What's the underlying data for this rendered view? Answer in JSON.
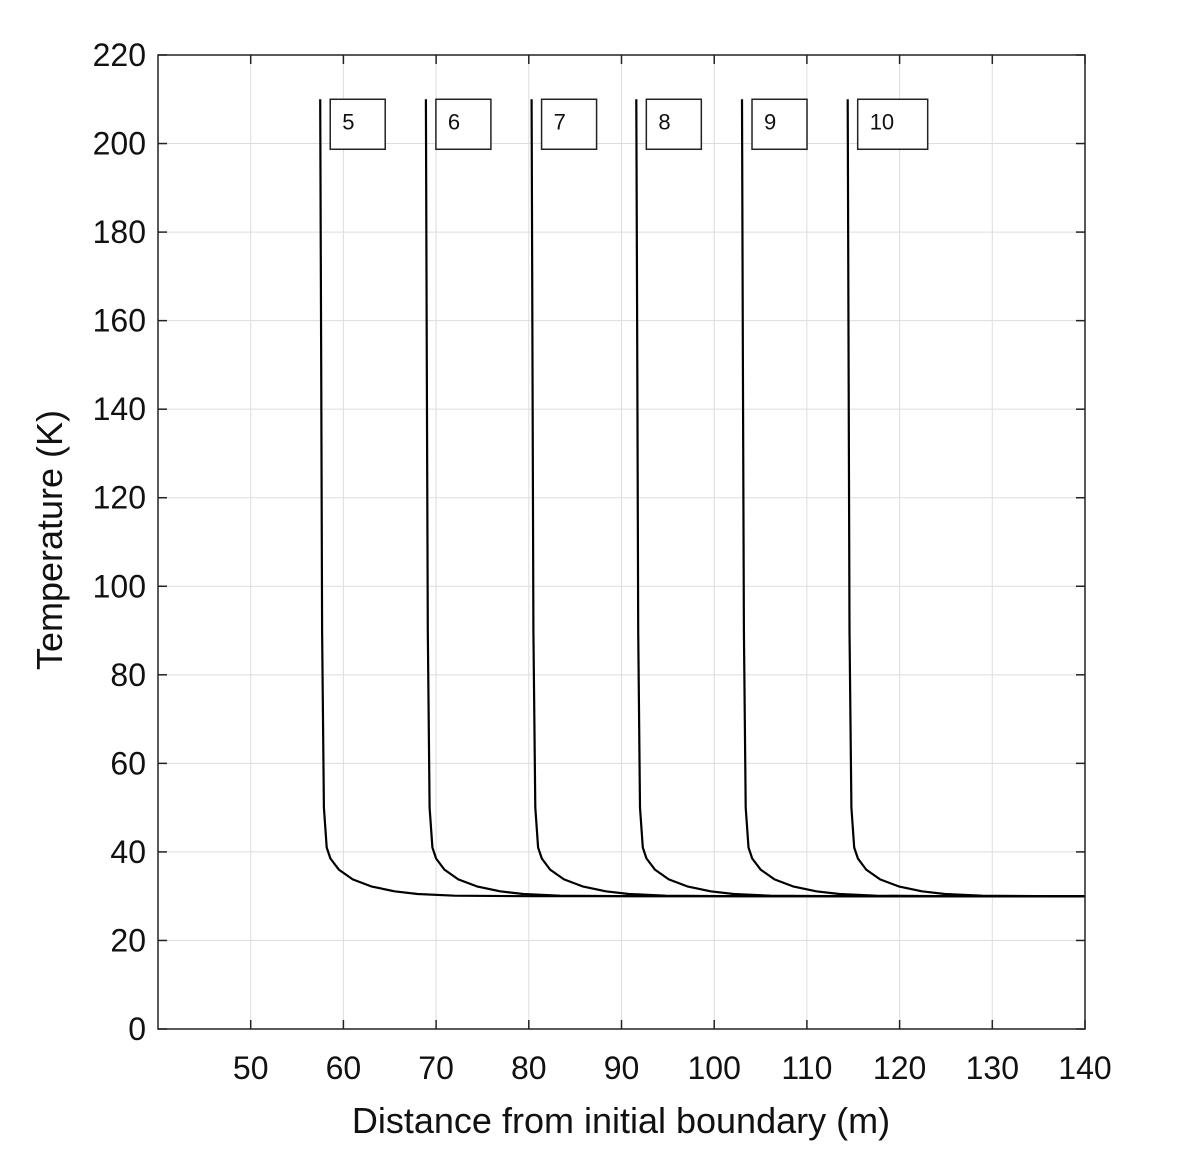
{
  "chart_data": {
    "type": "line",
    "title": "",
    "xlabel": "Distance from initial boundary (m)",
    "ylabel": "Temperature (K)",
    "xlim": [
      40,
      140
    ],
    "ylim": [
      0,
      220
    ],
    "x_ticks": [
      50,
      60,
      70,
      80,
      90,
      100,
      110,
      120,
      130,
      140
    ],
    "y_ticks": [
      0,
      20,
      40,
      60,
      80,
      100,
      120,
      140,
      160,
      180,
      200,
      220
    ],
    "grid": true,
    "line_color": "#000000",
    "series": [
      {
        "label": "5",
        "front_x": 57.5,
        "points": [
          [
            57.5,
            210
          ],
          [
            57.6,
            150
          ],
          [
            57.7,
            90
          ],
          [
            57.9,
            50
          ],
          [
            58.2,
            41
          ],
          [
            58.6,
            38.5
          ],
          [
            59.5,
            36
          ],
          [
            61,
            33.8
          ],
          [
            63,
            32.2
          ],
          [
            65.5,
            31.1
          ],
          [
            68,
            30.5
          ],
          [
            72,
            30.1
          ],
          [
            80,
            30
          ],
          [
            140,
            30
          ]
        ]
      },
      {
        "label": "6",
        "front_x": 68.9,
        "points": [
          [
            68.9,
            210
          ],
          [
            69,
            150
          ],
          [
            69.1,
            90
          ],
          [
            69.3,
            50
          ],
          [
            69.6,
            41
          ],
          [
            70,
            38.5
          ],
          [
            70.9,
            36
          ],
          [
            72.4,
            33.8
          ],
          [
            74.4,
            32.2
          ],
          [
            76.9,
            31.1
          ],
          [
            79.4,
            30.5
          ],
          [
            83.4,
            30.1
          ],
          [
            91.4,
            30
          ],
          [
            140,
            30
          ]
        ]
      },
      {
        "label": "7",
        "front_x": 80.3,
        "points": [
          [
            80.3,
            210
          ],
          [
            80.4,
            150
          ],
          [
            80.5,
            90
          ],
          [
            80.7,
            50
          ],
          [
            81,
            41
          ],
          [
            81.4,
            38.5
          ],
          [
            82.3,
            36
          ],
          [
            83.8,
            33.8
          ],
          [
            85.8,
            32.2
          ],
          [
            88.3,
            31.1
          ],
          [
            90.8,
            30.5
          ],
          [
            94.8,
            30.1
          ],
          [
            102.8,
            30
          ],
          [
            140,
            30
          ]
        ]
      },
      {
        "label": "8",
        "front_x": 91.6,
        "points": [
          [
            91.6,
            210
          ],
          [
            91.7,
            150
          ],
          [
            91.8,
            90
          ],
          [
            92,
            50
          ],
          [
            92.3,
            41
          ],
          [
            92.7,
            38.5
          ],
          [
            93.6,
            36
          ],
          [
            95.1,
            33.8
          ],
          [
            97.1,
            32.2
          ],
          [
            99.6,
            31.1
          ],
          [
            102.1,
            30.5
          ],
          [
            106.1,
            30.1
          ],
          [
            114.1,
            30
          ],
          [
            140,
            30
          ]
        ]
      },
      {
        "label": "9",
        "front_x": 103,
        "points": [
          [
            103,
            210
          ],
          [
            103.1,
            150
          ],
          [
            103.2,
            90
          ],
          [
            103.4,
            50
          ],
          [
            103.7,
            41
          ],
          [
            104.1,
            38.5
          ],
          [
            105,
            36
          ],
          [
            106.5,
            33.8
          ],
          [
            108.5,
            32.2
          ],
          [
            111,
            31.1
          ],
          [
            113.5,
            30.5
          ],
          [
            117.5,
            30.1
          ],
          [
            125.5,
            30
          ],
          [
            140,
            30
          ]
        ]
      },
      {
        "label": "10",
        "front_x": 114.4,
        "points": [
          [
            114.4,
            210
          ],
          [
            114.5,
            150
          ],
          [
            114.6,
            90
          ],
          [
            114.8,
            50
          ],
          [
            115.1,
            41
          ],
          [
            115.5,
            38.5
          ],
          [
            116.4,
            36
          ],
          [
            117.9,
            33.8
          ],
          [
            119.9,
            32.2
          ],
          [
            122.4,
            31.1
          ],
          [
            124.9,
            30.5
          ],
          [
            128.9,
            30.1
          ],
          [
            136.9,
            30
          ],
          [
            140,
            30
          ]
        ]
      }
    ]
  }
}
